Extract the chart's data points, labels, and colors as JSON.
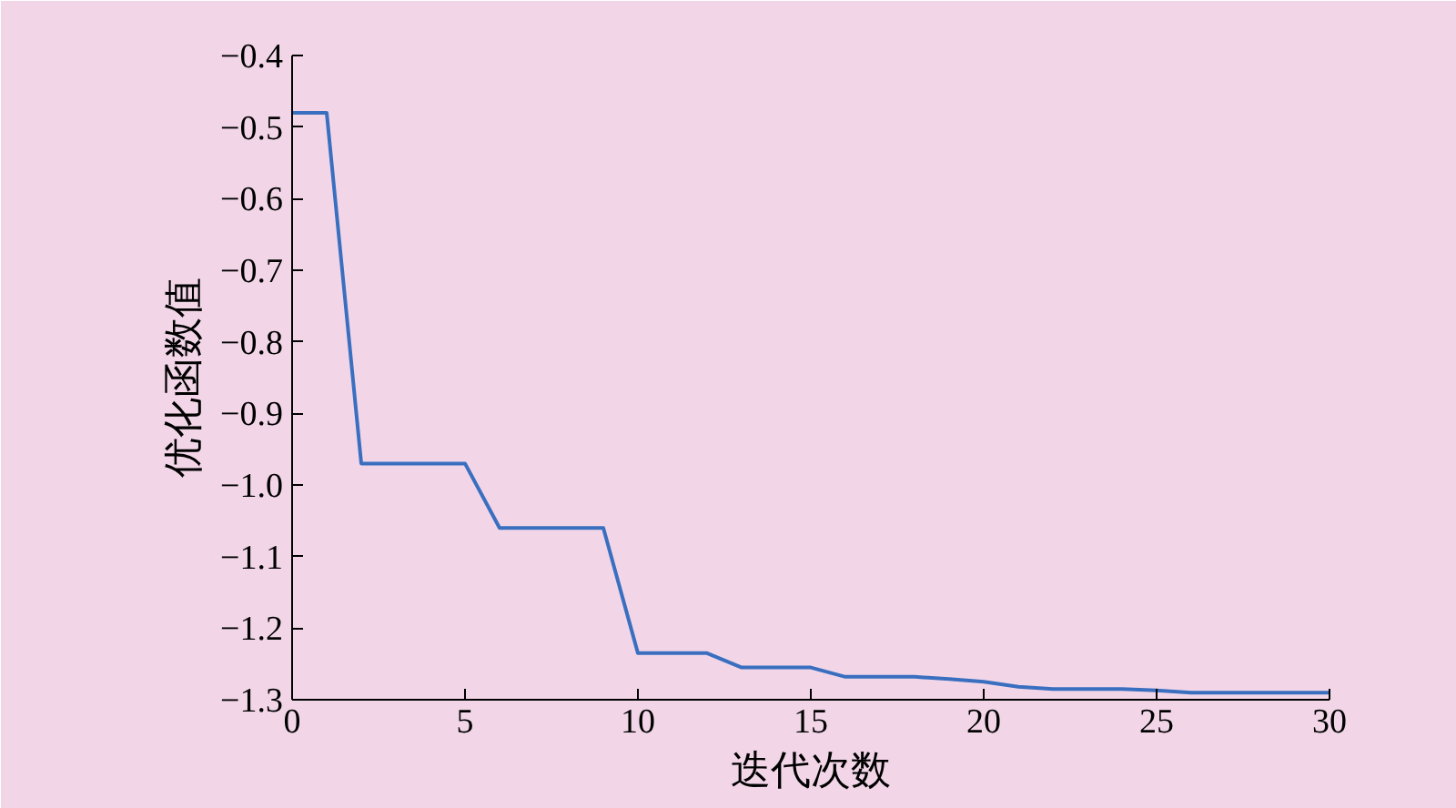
{
  "chart_data": {
    "type": "line",
    "xlabel": "迭代次数",
    "ylabel": "优化函数值",
    "x": [
      0,
      1,
      2,
      3,
      4,
      5,
      6,
      7,
      8,
      9,
      10,
      11,
      12,
      13,
      14,
      15,
      16,
      17,
      18,
      19,
      20,
      21,
      22,
      23,
      24,
      25,
      26,
      27,
      28,
      29,
      30
    ],
    "series": [
      {
        "color": "#3a6fc0",
        "values": [
          -0.48,
          -0.48,
          -0.97,
          -0.97,
          -0.97,
          -0.97,
          -1.06,
          -1.06,
          -1.06,
          -1.06,
          -1.235,
          -1.235,
          -1.235,
          -1.255,
          -1.255,
          -1.255,
          -1.268,
          -1.268,
          -1.268,
          -1.271,
          -1.275,
          -1.282,
          -1.285,
          -1.285,
          -1.285,
          -1.287,
          -1.29,
          -1.29,
          -1.29,
          -1.29,
          -1.29
        ]
      }
    ],
    "xlim": [
      0,
      30
    ],
    "xticks": [
      0,
      5,
      10,
      15,
      20,
      25,
      30
    ],
    "ylim": [
      -1.3,
      -0.4
    ],
    "yticks": [
      {
        "value": -1.3,
        "label": "−1.3"
      },
      {
        "value": -1.2,
        "label": "−1.2"
      },
      {
        "value": -1.1,
        "label": "−1.1"
      },
      {
        "value": -1.0,
        "label": "−1.0"
      },
      {
        "value": -0.9,
        "label": "−0.9"
      },
      {
        "value": -0.8,
        "label": "−0.8"
      },
      {
        "value": -0.7,
        "label": "−0.7"
      },
      {
        "value": -0.6,
        "label": "−0.6"
      },
      {
        "value": -0.5,
        "label": "−0.5"
      },
      {
        "value": -0.4,
        "label": "−0.4"
      }
    ],
    "grid": false,
    "marker": "none",
    "line_style": "solid"
  }
}
